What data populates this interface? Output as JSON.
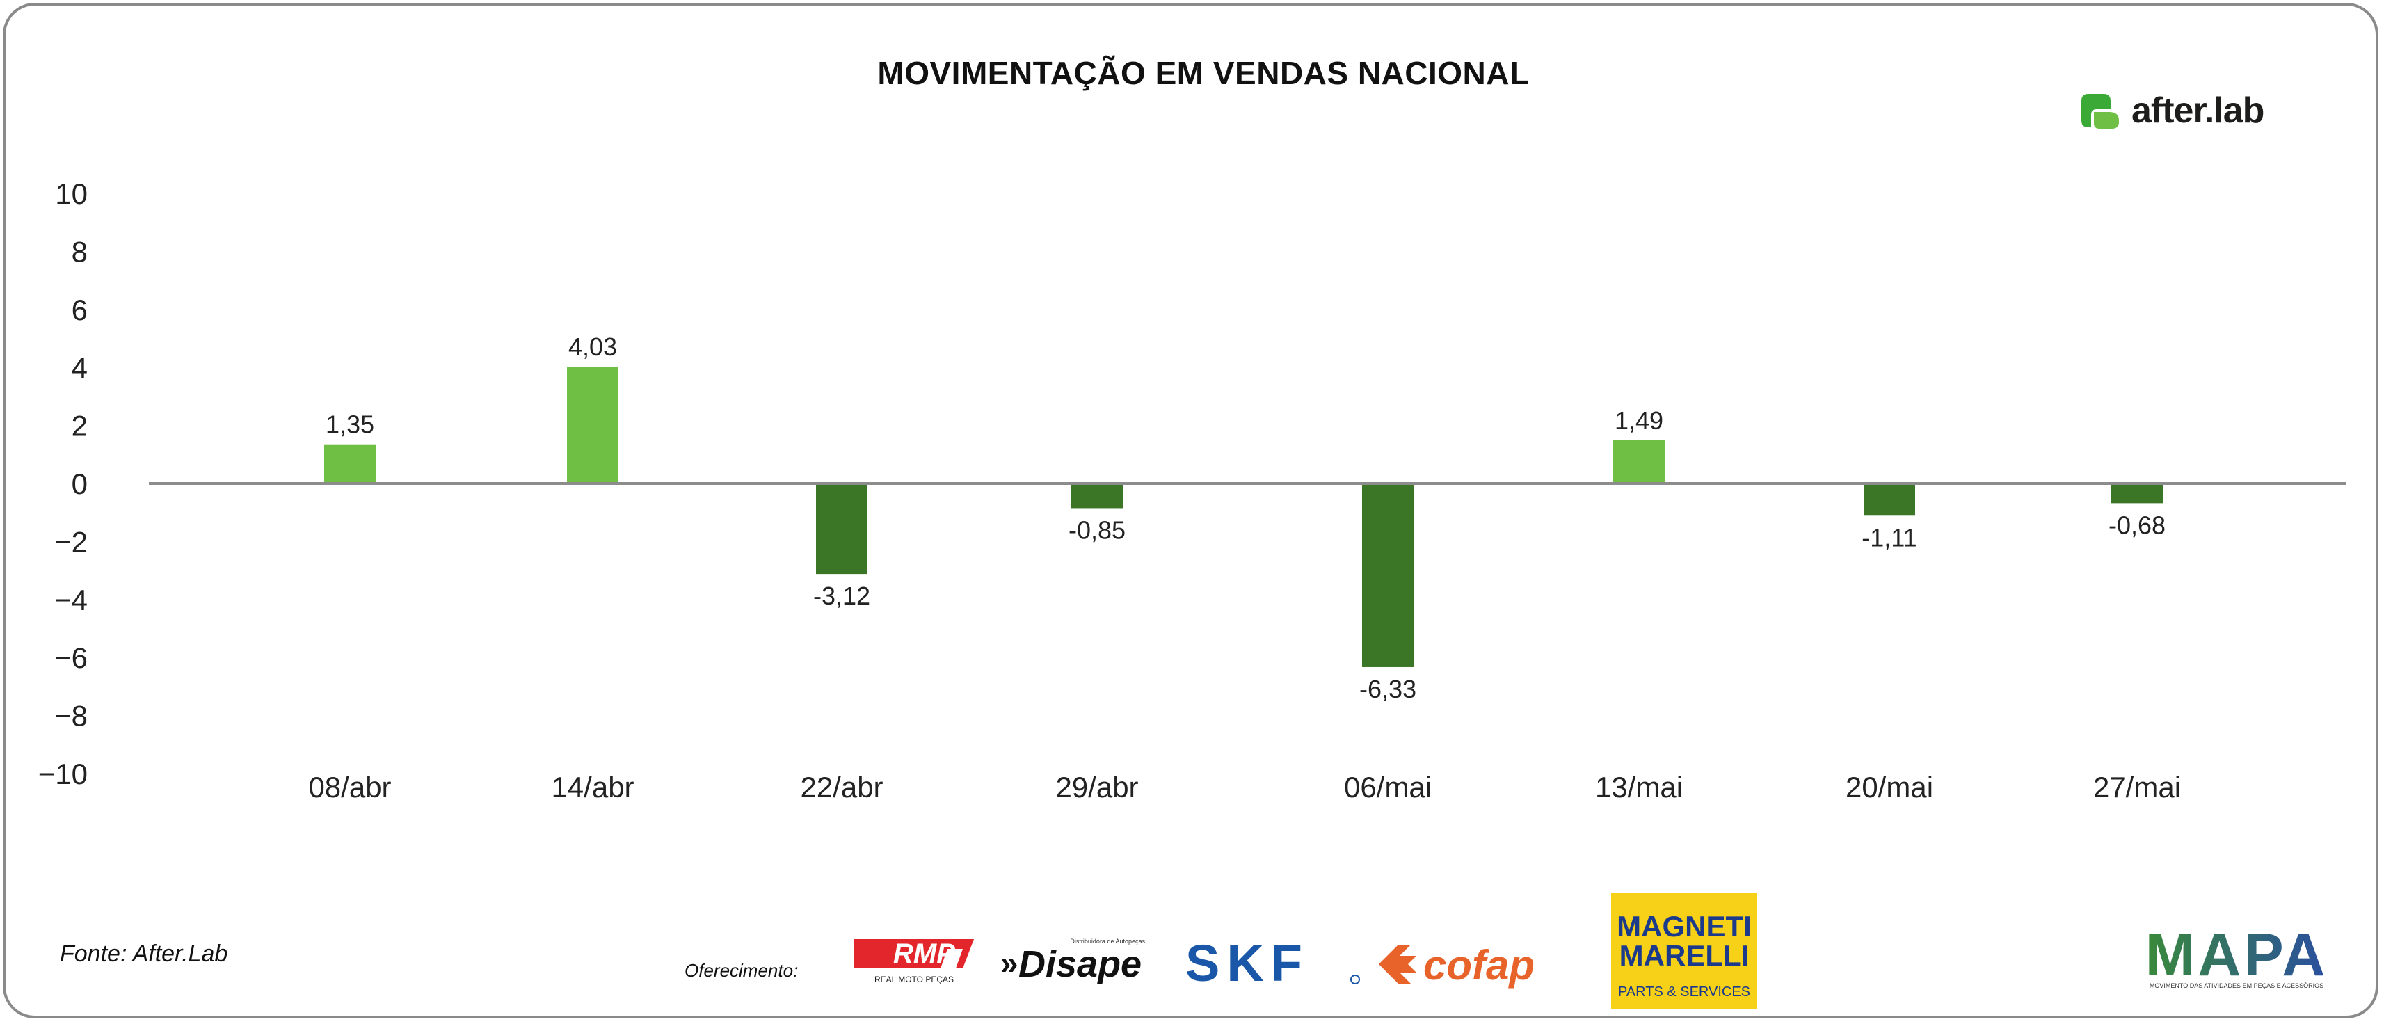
{
  "title": "MOVIMENTAÇÃO EM VENDAS NACIONAL",
  "brand": {
    "name": "after.lab",
    "icon": "after-lab-icon"
  },
  "source": "Fonte: After.Lab",
  "sponsor_label": "Oferecimento:",
  "sponsors": {
    "rmp": {
      "name": "RMP",
      "tagline": "REAL MOTO PEÇAS"
    },
    "disape": {
      "name": "Disape",
      "tagline": "Distribuidora de Autopeças"
    },
    "skf": {
      "name": "SKF"
    },
    "cofap": {
      "name": "cofap"
    },
    "magneti": {
      "line1": "MAGNETI",
      "line2": "MARELLI",
      "tagline": "PARTS & SERVICES"
    },
    "mapa": {
      "name": "MAPA",
      "tagline": "MOVIMENTO DAS ATIVIDADES EM PEÇAS E ACESSÓRIOS"
    }
  },
  "colors": {
    "positive": "#6fbf44",
    "negative": "#3a7625",
    "axis": "#8c8c8c"
  },
  "chart_data": {
    "type": "bar",
    "title": "MOVIMENTAÇÃO EM VENDAS NACIONAL",
    "categories": [
      "08/abr",
      "14/abr",
      "22/abr",
      "29/abr",
      "06/mai",
      "13/mai",
      "20/mai",
      "27/mai"
    ],
    "values": [
      1.35,
      4.03,
      -3.12,
      -0.85,
      -6.33,
      1.49,
      -1.11,
      -0.68
    ],
    "value_labels": [
      "1,35",
      "4,03",
      "-3,12",
      "-0,85",
      "-6,33",
      "1,49",
      "-1,11",
      "-0,68"
    ],
    "ylim": [
      -10,
      10
    ],
    "yticks": [
      10,
      8,
      6,
      4,
      2,
      0,
      -2,
      -4,
      -6,
      -8,
      -10
    ],
    "grid": false,
    "legend": "none"
  }
}
